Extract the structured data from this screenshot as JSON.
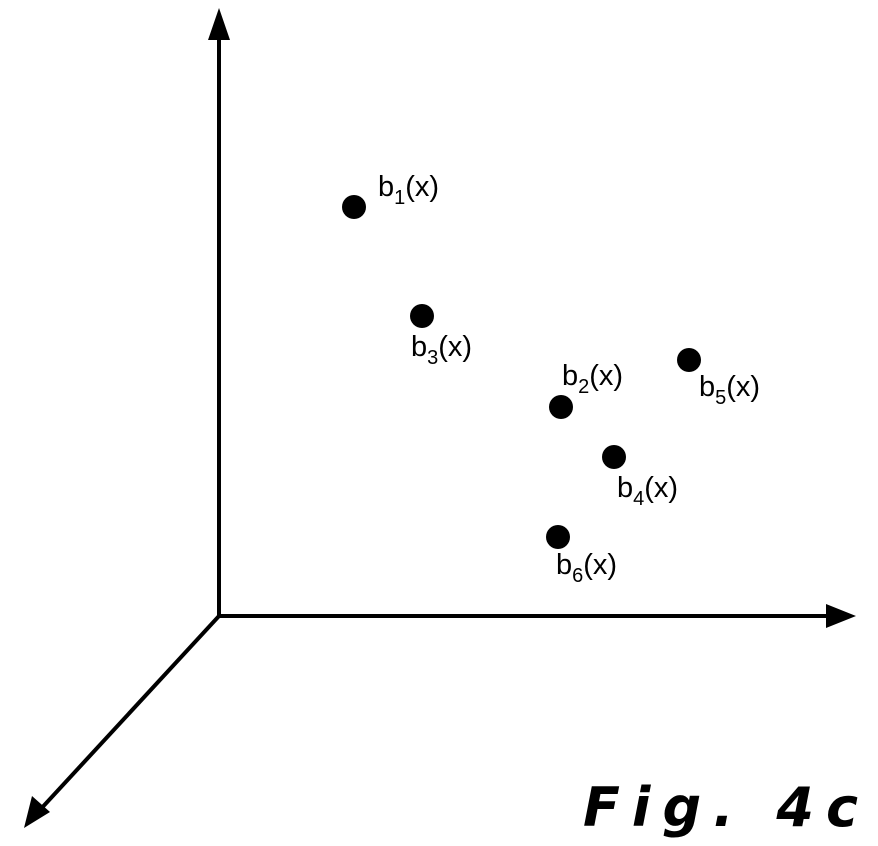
{
  "figure": {
    "caption": "Fig. 4c",
    "points": [
      {
        "base": "b",
        "sub": "1",
        "arg": "(x)"
      },
      {
        "base": "b",
        "sub": "3",
        "arg": "(x)"
      },
      {
        "base": "b",
        "sub": "2",
        "arg": "(x)"
      },
      {
        "base": "b",
        "sub": "5",
        "arg": "(x)"
      },
      {
        "base": "b",
        "sub": "4",
        "arg": "(x)"
      },
      {
        "base": "b",
        "sub": "6",
        "arg": "(x)"
      }
    ]
  }
}
